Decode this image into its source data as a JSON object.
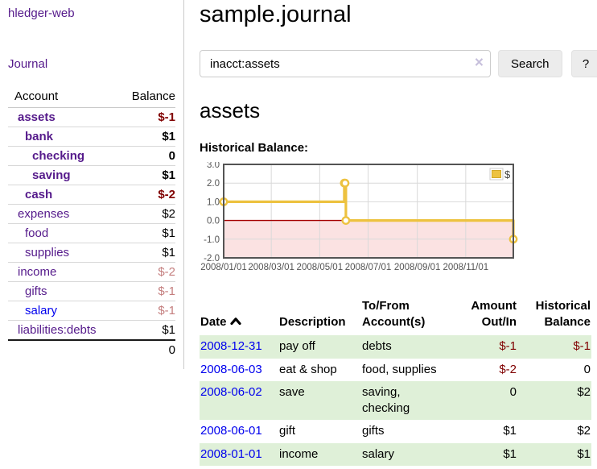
{
  "colors": {
    "link_visited": "#551a8b",
    "link": "#0000ee",
    "negative": "#800000",
    "negative_muted": "#c47e7e",
    "row_stripe_green": "#dff0d8",
    "series_gold": "#edc240",
    "zero_line_red": "#a40000",
    "negative_region_pink": "#fbe2e2",
    "plot_border": "#545454"
  },
  "sidebar": {
    "brand": "hledger-web",
    "journal_link": "Journal",
    "accounts": {
      "col_account": "Account",
      "col_balance": "Balance",
      "rows": [
        {
          "name": "assets",
          "balance": "$-1",
          "depth": 1,
          "bold": true,
          "balance_style": "neg-strong"
        },
        {
          "name": "bank",
          "balance": "$1",
          "depth": 2,
          "bold": true,
          "balance_style": "pos"
        },
        {
          "name": "checking",
          "balance": "0",
          "depth": 3,
          "bold": true,
          "balance_style": "pos"
        },
        {
          "name": "saving",
          "balance": "$1",
          "depth": 3,
          "bold": true,
          "balance_style": "pos"
        },
        {
          "name": "cash",
          "balance": "$-2",
          "depth": 2,
          "bold": true,
          "balance_style": "neg-strong"
        },
        {
          "name": "expenses",
          "balance": "$2",
          "depth": 1,
          "bold": false,
          "balance_style": "pos"
        },
        {
          "name": "food",
          "balance": "$1",
          "depth": 2,
          "bold": false,
          "balance_style": "pos"
        },
        {
          "name": "supplies",
          "balance": "$1",
          "depth": 2,
          "bold": false,
          "balance_style": "pos"
        },
        {
          "name": "income",
          "balance": "$-2",
          "depth": 1,
          "bold": false,
          "balance_style": "neg-muted"
        },
        {
          "name": "gifts",
          "balance": "$-1",
          "depth": 2,
          "bold": false,
          "balance_style": "neg-muted"
        },
        {
          "name": "salary",
          "balance": "$-1",
          "depth": 2,
          "bold": false,
          "balance_style": "neg-muted",
          "link_color": "blue"
        },
        {
          "name": "liabilities:debts",
          "balance": "$1",
          "depth": 1,
          "bold": false,
          "balance_style": "pos"
        }
      ],
      "total": "0"
    }
  },
  "header": {
    "title": "sample.journal"
  },
  "search": {
    "value": "inacct:assets",
    "clear_icon": "×",
    "search_button": "Search",
    "help_button": "?"
  },
  "account_view": {
    "heading": "assets",
    "chart_title": "Historical Balance:"
  },
  "chart_data": {
    "type": "line",
    "step": true,
    "title": "Historical Balance:",
    "series": [
      {
        "name": "$",
        "color": "#edc240",
        "points": [
          [
            "2008-01-01",
            1
          ],
          [
            "2008-06-01",
            2
          ],
          [
            "2008-06-02",
            2
          ],
          [
            "2008-06-03",
            0
          ],
          [
            "2008-12-31",
            -1
          ]
        ]
      }
    ],
    "ylim": [
      -2,
      3
    ],
    "y_ticks": [
      3.0,
      2.0,
      1.0,
      0.0,
      -1.0,
      -2.0
    ],
    "x_ticks": [
      "2008/01/01",
      "2008/03/01",
      "2008/05/01",
      "2008/07/01",
      "2008/09/01",
      "2008/11/01"
    ],
    "grid": true,
    "legend_position": "top-right",
    "legend_label": "$",
    "negative_region_shaded": true
  },
  "register": {
    "columns": [
      "Date",
      "Description",
      "To/From Account(s)",
      "Amount Out/In",
      "Historical Balance"
    ],
    "sort": {
      "column": "Date",
      "direction": "asc"
    },
    "rows": [
      {
        "date": "2008-12-31",
        "description": "pay off",
        "accounts": "debts",
        "amount": "$-1",
        "amount_style": "neg",
        "balance": "$-1",
        "balance_style": "neg"
      },
      {
        "date": "2008-06-03",
        "description": "eat & shop",
        "accounts": "food, supplies",
        "amount": "$-2",
        "amount_style": "neg",
        "balance": "0",
        "balance_style": "pos"
      },
      {
        "date": "2008-06-02",
        "description": "save",
        "accounts": "saving, checking",
        "amount": "0",
        "amount_style": "pos",
        "balance": "$2",
        "balance_style": "pos"
      },
      {
        "date": "2008-06-01",
        "description": "gift",
        "accounts": "gifts",
        "amount": "$1",
        "amount_style": "pos",
        "balance": "$2",
        "balance_style": "pos"
      },
      {
        "date": "2008-01-01",
        "description": "income",
        "accounts": "salary",
        "amount": "$1",
        "amount_style": "pos",
        "balance": "$1",
        "balance_style": "pos"
      }
    ]
  }
}
